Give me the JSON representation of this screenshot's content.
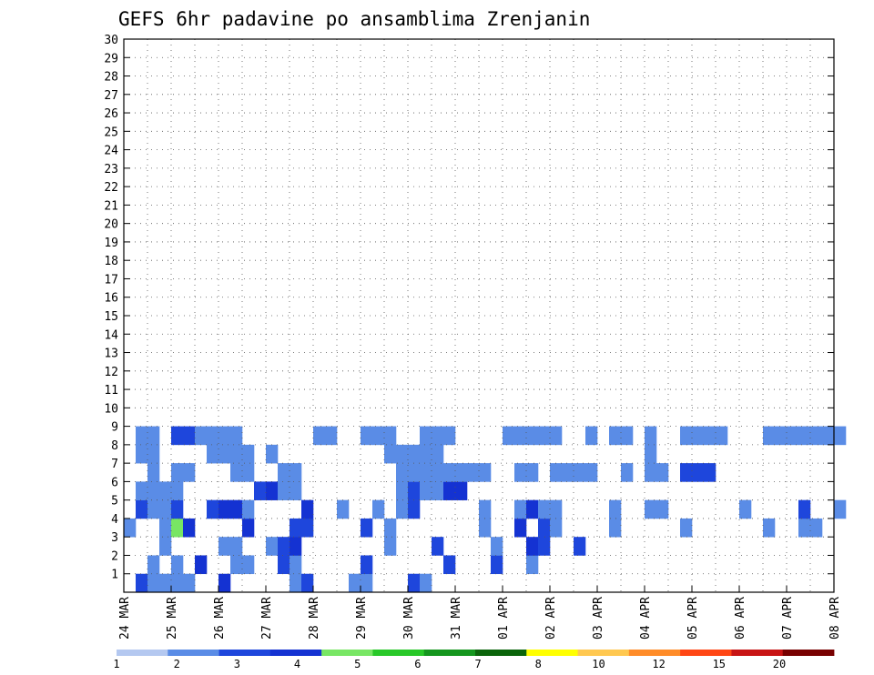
{
  "chart_data": {
    "type": "heatmap",
    "title": "GEFS 6hr padavine po ansamblima Zrenjanin",
    "xlabel": "",
    "ylabel": "",
    "x_tick_labels": [
      "24 MAR",
      "25 MAR",
      "26 MAR",
      "27 MAR",
      "28 MAR",
      "29 MAR",
      "30 MAR",
      "31 MAR",
      "01 APR",
      "02 APR",
      "03 APR",
      "04 APR",
      "05 APR",
      "06 APR",
      "07 APR",
      "08 APR"
    ],
    "y_tick_labels": [
      "1",
      "2",
      "3",
      "4",
      "5",
      "6",
      "7",
      "8",
      "9",
      "10",
      "11",
      "12",
      "13",
      "14",
      "15",
      "16",
      "17",
      "18",
      "19",
      "20",
      "21",
      "22",
      "23",
      "24",
      "25",
      "26",
      "27",
      "28",
      "29",
      "30"
    ],
    "x_range": [
      0,
      60
    ],
    "y_range": [
      0,
      30
    ],
    "x_unit": "6-hour steps from 24 MAR 00Z",
    "grid": true,
    "colorbar": {
      "levels": [
        "1",
        "2",
        "3",
        "4",
        "5",
        "6",
        "7",
        "8",
        "10",
        "12",
        "15",
        "20"
      ],
      "colors": [
        "#b4c8f0",
        "#5a8ce6",
        "#1e46dc",
        "#1432d2",
        "#78e664",
        "#28c828",
        "#14961e",
        "#0a640a",
        "#ffff00",
        "#ffc850",
        "#ff8c28",
        "#ff4614",
        "#c81414",
        "#780000"
      ]
    },
    "cells": [
      [
        1,
        0,
        2
      ],
      [
        2,
        0,
        1
      ],
      [
        3,
        0,
        1
      ],
      [
        4,
        0,
        1
      ],
      [
        5,
        0,
        1
      ],
      [
        8,
        0,
        3
      ],
      [
        14,
        0,
        1
      ],
      [
        15,
        0,
        2
      ],
      [
        19,
        0,
        1
      ],
      [
        20,
        0,
        1
      ],
      [
        24,
        0,
        2
      ],
      [
        25,
        0,
        1
      ],
      [
        2,
        1,
        1
      ],
      [
        4,
        1,
        1
      ],
      [
        6,
        1,
        3
      ],
      [
        9,
        1,
        1
      ],
      [
        10,
        1,
        1
      ],
      [
        13,
        1,
        2
      ],
      [
        14,
        1,
        1
      ],
      [
        20,
        1,
        2
      ],
      [
        27,
        1,
        2
      ],
      [
        31,
        1,
        2
      ],
      [
        34,
        1,
        1
      ],
      [
        3,
        2,
        1
      ],
      [
        8,
        2,
        1
      ],
      [
        9,
        2,
        1
      ],
      [
        12,
        2,
        1
      ],
      [
        13,
        2,
        2
      ],
      [
        14,
        2,
        3
      ],
      [
        22,
        2,
        1
      ],
      [
        26,
        2,
        2
      ],
      [
        31,
        2,
        1
      ],
      [
        34,
        2,
        3
      ],
      [
        35,
        2,
        2
      ],
      [
        38,
        2,
        2
      ],
      [
        0,
        3,
        1
      ],
      [
        3,
        3,
        1
      ],
      [
        4,
        3,
        4
      ],
      [
        5,
        3,
        3
      ],
      [
        10,
        3,
        3
      ],
      [
        14,
        3,
        2
      ],
      [
        15,
        3,
        2
      ],
      [
        20,
        3,
        2
      ],
      [
        22,
        3,
        1
      ],
      [
        30,
        3,
        1
      ],
      [
        33,
        3,
        3
      ],
      [
        35,
        3,
        2
      ],
      [
        36,
        3,
        1
      ],
      [
        41,
        3,
        1
      ],
      [
        47,
        3,
        1
      ],
      [
        54,
        3,
        1
      ],
      [
        57,
        3,
        1
      ],
      [
        58,
        3,
        1
      ],
      [
        1,
        4,
        2
      ],
      [
        2,
        4,
        1
      ],
      [
        3,
        4,
        1
      ],
      [
        4,
        4,
        2
      ],
      [
        7,
        4,
        2
      ],
      [
        8,
        4,
        3
      ],
      [
        9,
        4,
        3
      ],
      [
        10,
        4,
        1
      ],
      [
        15,
        4,
        3
      ],
      [
        18,
        4,
        1
      ],
      [
        21,
        4,
        1
      ],
      [
        23,
        4,
        1
      ],
      [
        24,
        4,
        2
      ],
      [
        30,
        4,
        1
      ],
      [
        33,
        4,
        1
      ],
      [
        34,
        4,
        3
      ],
      [
        35,
        4,
        1
      ],
      [
        36,
        4,
        1
      ],
      [
        41,
        4,
        1
      ],
      [
        44,
        4,
        1
      ],
      [
        45,
        4,
        1
      ],
      [
        52,
        4,
        1
      ],
      [
        57,
        4,
        2
      ],
      [
        60,
        4,
        1
      ],
      [
        1,
        5,
        1
      ],
      [
        2,
        5,
        1
      ],
      [
        3,
        5,
        1
      ],
      [
        4,
        5,
        1
      ],
      [
        11,
        5,
        2
      ],
      [
        12,
        5,
        3
      ],
      [
        13,
        5,
        1
      ],
      [
        14,
        5,
        1
      ],
      [
        23,
        5,
        1
      ],
      [
        24,
        5,
        2
      ],
      [
        25,
        5,
        1
      ],
      [
        26,
        5,
        1
      ],
      [
        27,
        5,
        3
      ],
      [
        28,
        5,
        3
      ],
      [
        2,
        6,
        1
      ],
      [
        4,
        6,
        1
      ],
      [
        5,
        6,
        1
      ],
      [
        9,
        6,
        1
      ],
      [
        10,
        6,
        1
      ],
      [
        13,
        6,
        1
      ],
      [
        14,
        6,
        1
      ],
      [
        23,
        6,
        1
      ],
      [
        24,
        6,
        1
      ],
      [
        25,
        6,
        1
      ],
      [
        26,
        6,
        1
      ],
      [
        27,
        6,
        1
      ],
      [
        28,
        6,
        1
      ],
      [
        29,
        6,
        1
      ],
      [
        30,
        6,
        1
      ],
      [
        33,
        6,
        1
      ],
      [
        34,
        6,
        1
      ],
      [
        36,
        6,
        1
      ],
      [
        37,
        6,
        1
      ],
      [
        38,
        6,
        1
      ],
      [
        39,
        6,
        1
      ],
      [
        42,
        6,
        1
      ],
      [
        44,
        6,
        1
      ],
      [
        45,
        6,
        1
      ],
      [
        47,
        6,
        2
      ],
      [
        48,
        6,
        2
      ],
      [
        49,
        6,
        2
      ],
      [
        1,
        7,
        1
      ],
      [
        2,
        7,
        1
      ],
      [
        7,
        7,
        1
      ],
      [
        8,
        7,
        1
      ],
      [
        9,
        7,
        1
      ],
      [
        10,
        7,
        1
      ],
      [
        12,
        7,
        1
      ],
      [
        22,
        7,
        1
      ],
      [
        23,
        7,
        1
      ],
      [
        24,
        7,
        1
      ],
      [
        25,
        7,
        1
      ],
      [
        26,
        7,
        1
      ],
      [
        44,
        7,
        1
      ],
      [
        1,
        8,
        1
      ],
      [
        2,
        8,
        1
      ],
      [
        4,
        8,
        2
      ],
      [
        5,
        8,
        2
      ],
      [
        6,
        8,
        1
      ],
      [
        7,
        8,
        1
      ],
      [
        8,
        8,
        1
      ],
      [
        9,
        8,
        1
      ],
      [
        16,
        8,
        1
      ],
      [
        17,
        8,
        1
      ],
      [
        20,
        8,
        1
      ],
      [
        21,
        8,
        1
      ],
      [
        22,
        8,
        1
      ],
      [
        25,
        8,
        1
      ],
      [
        26,
        8,
        1
      ],
      [
        27,
        8,
        1
      ],
      [
        32,
        8,
        1
      ],
      [
        33,
        8,
        1
      ],
      [
        34,
        8,
        1
      ],
      [
        35,
        8,
        1
      ],
      [
        36,
        8,
        1
      ],
      [
        39,
        8,
        1
      ],
      [
        41,
        8,
        1
      ],
      [
        42,
        8,
        1
      ],
      [
        44,
        8,
        1
      ],
      [
        47,
        8,
        1
      ],
      [
        48,
        8,
        1
      ],
      [
        49,
        8,
        1
      ],
      [
        50,
        8,
        1
      ],
      [
        54,
        8,
        1
      ],
      [
        55,
        8,
        1
      ],
      [
        56,
        8,
        1
      ],
      [
        57,
        8,
        1
      ],
      [
        58,
        8,
        1
      ],
      [
        59,
        8,
        1
      ],
      [
        60,
        8,
        1
      ]
    ]
  }
}
